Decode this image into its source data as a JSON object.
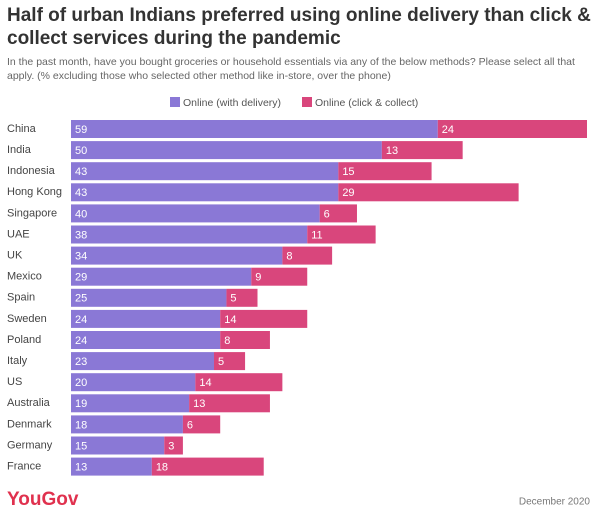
{
  "chart_data": {
    "type": "stacked-bar",
    "title": "Half of urban Indians preferred using online delivery than click & collect services during the pandemic",
    "subtitle": "In the past month, have you bought groceries or household essentials via any of the below methods? Please select all that apply. (% excluding those who selected other method like in-store, over the phone)",
    "categories": [
      "China",
      "India",
      "Indonesia",
      "Hong Kong",
      "Singapore",
      "UAE",
      "UK",
      "Mexico",
      "Spain",
      "Sweden",
      "Poland",
      "Italy",
      "US",
      "Australia",
      "Denmark",
      "Germany",
      "France"
    ],
    "series": [
      {
        "name": "Online (with delivery)",
        "color": "#8a78d6",
        "values": [
          59,
          50,
          43,
          43,
          40,
          38,
          34,
          29,
          25,
          24,
          24,
          23,
          20,
          19,
          18,
          15,
          13
        ]
      },
      {
        "name": "Online (click & collect)",
        "color": "#d9467c",
        "values": [
          24,
          13,
          15,
          29,
          6,
          11,
          8,
          9,
          5,
          14,
          8,
          5,
          14,
          13,
          6,
          3,
          18
        ]
      }
    ],
    "legend": "top",
    "source": "YouGov",
    "date": "December 2020"
  }
}
